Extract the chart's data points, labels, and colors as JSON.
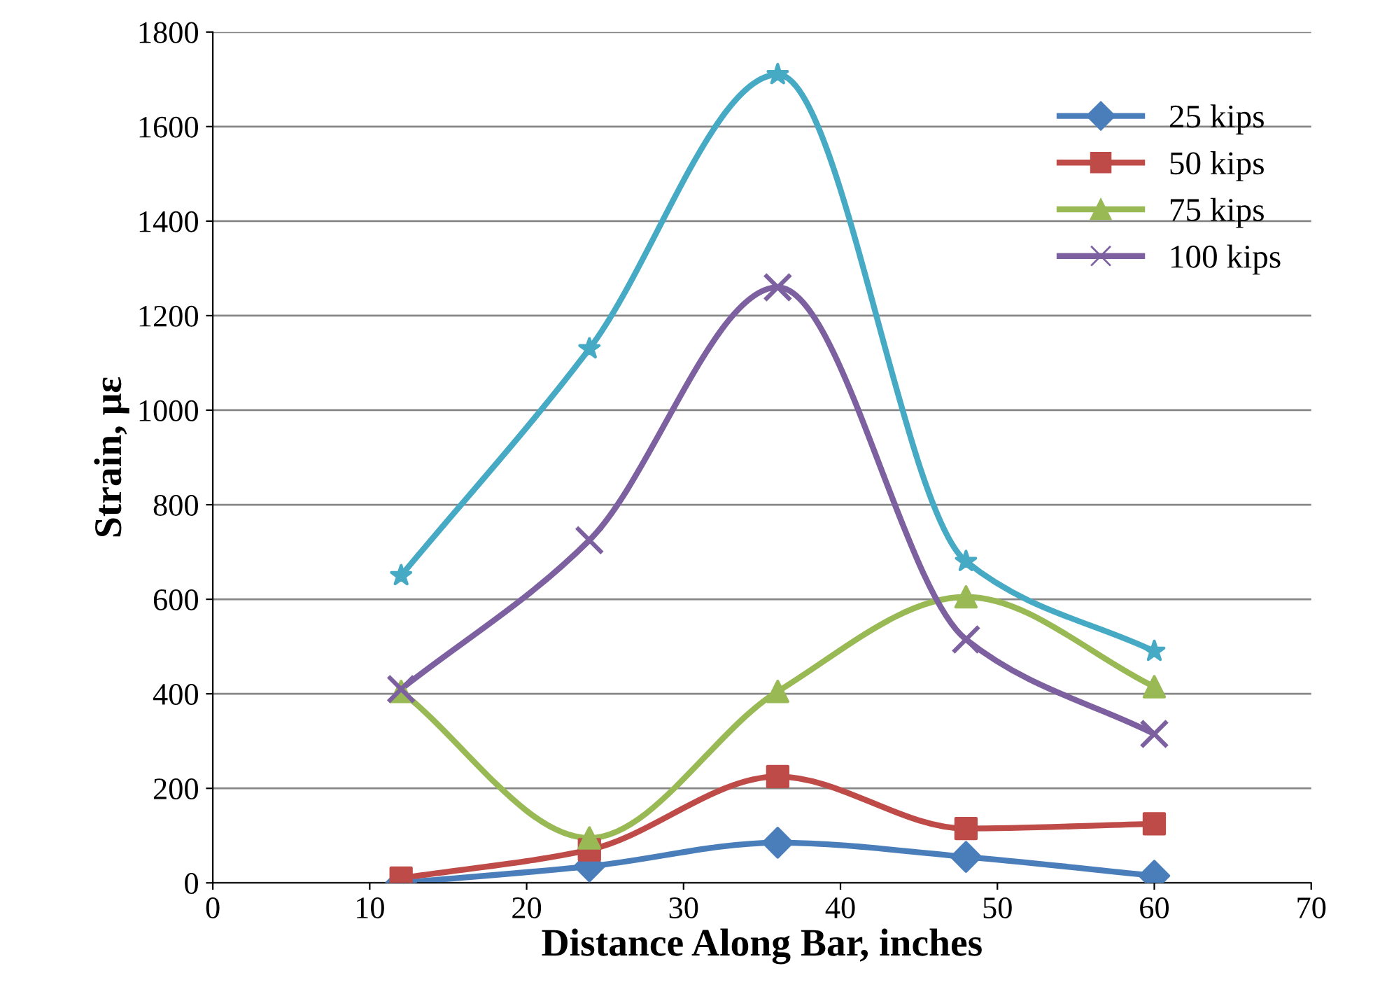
{
  "chart_data": {
    "type": "line",
    "xlabel": "Distance Along Bar, inches",
    "ylabel": "Strain, με",
    "x": [
      12,
      24,
      36,
      48,
      60
    ],
    "xlim": [
      0,
      70
    ],
    "xticks": [
      0,
      10,
      20,
      30,
      40,
      50,
      60,
      70
    ],
    "ylim": [
      0,
      1800
    ],
    "yticks": [
      0,
      200,
      400,
      600,
      800,
      1000,
      1200,
      1400,
      1600,
      1800
    ],
    "grid": "y",
    "legend": "top right",
    "line_style": "solid",
    "series": [
      {
        "name": "25 kips",
        "color": "#4a7ebb",
        "marker": "diamond",
        "values": [
          0,
          35,
          85,
          55,
          15
        ]
      },
      {
        "name": "50 kips",
        "color": "#be4b48",
        "marker": "square",
        "values": [
          10,
          70,
          225,
          115,
          125
        ]
      },
      {
        "name": "75 kips",
        "color": "#98b954",
        "marker": "triangle",
        "values": [
          405,
          95,
          405,
          605,
          415
        ]
      },
      {
        "name": "100 kips",
        "color": "#7d60a0",
        "marker": "cross",
        "values": [
          410,
          725,
          1260,
          515,
          315
        ]
      },
      {
        "color": "#46aac5",
        "marker": "star",
        "values": [
          650,
          1130,
          1710,
          680,
          490
        ]
      }
    ]
  }
}
